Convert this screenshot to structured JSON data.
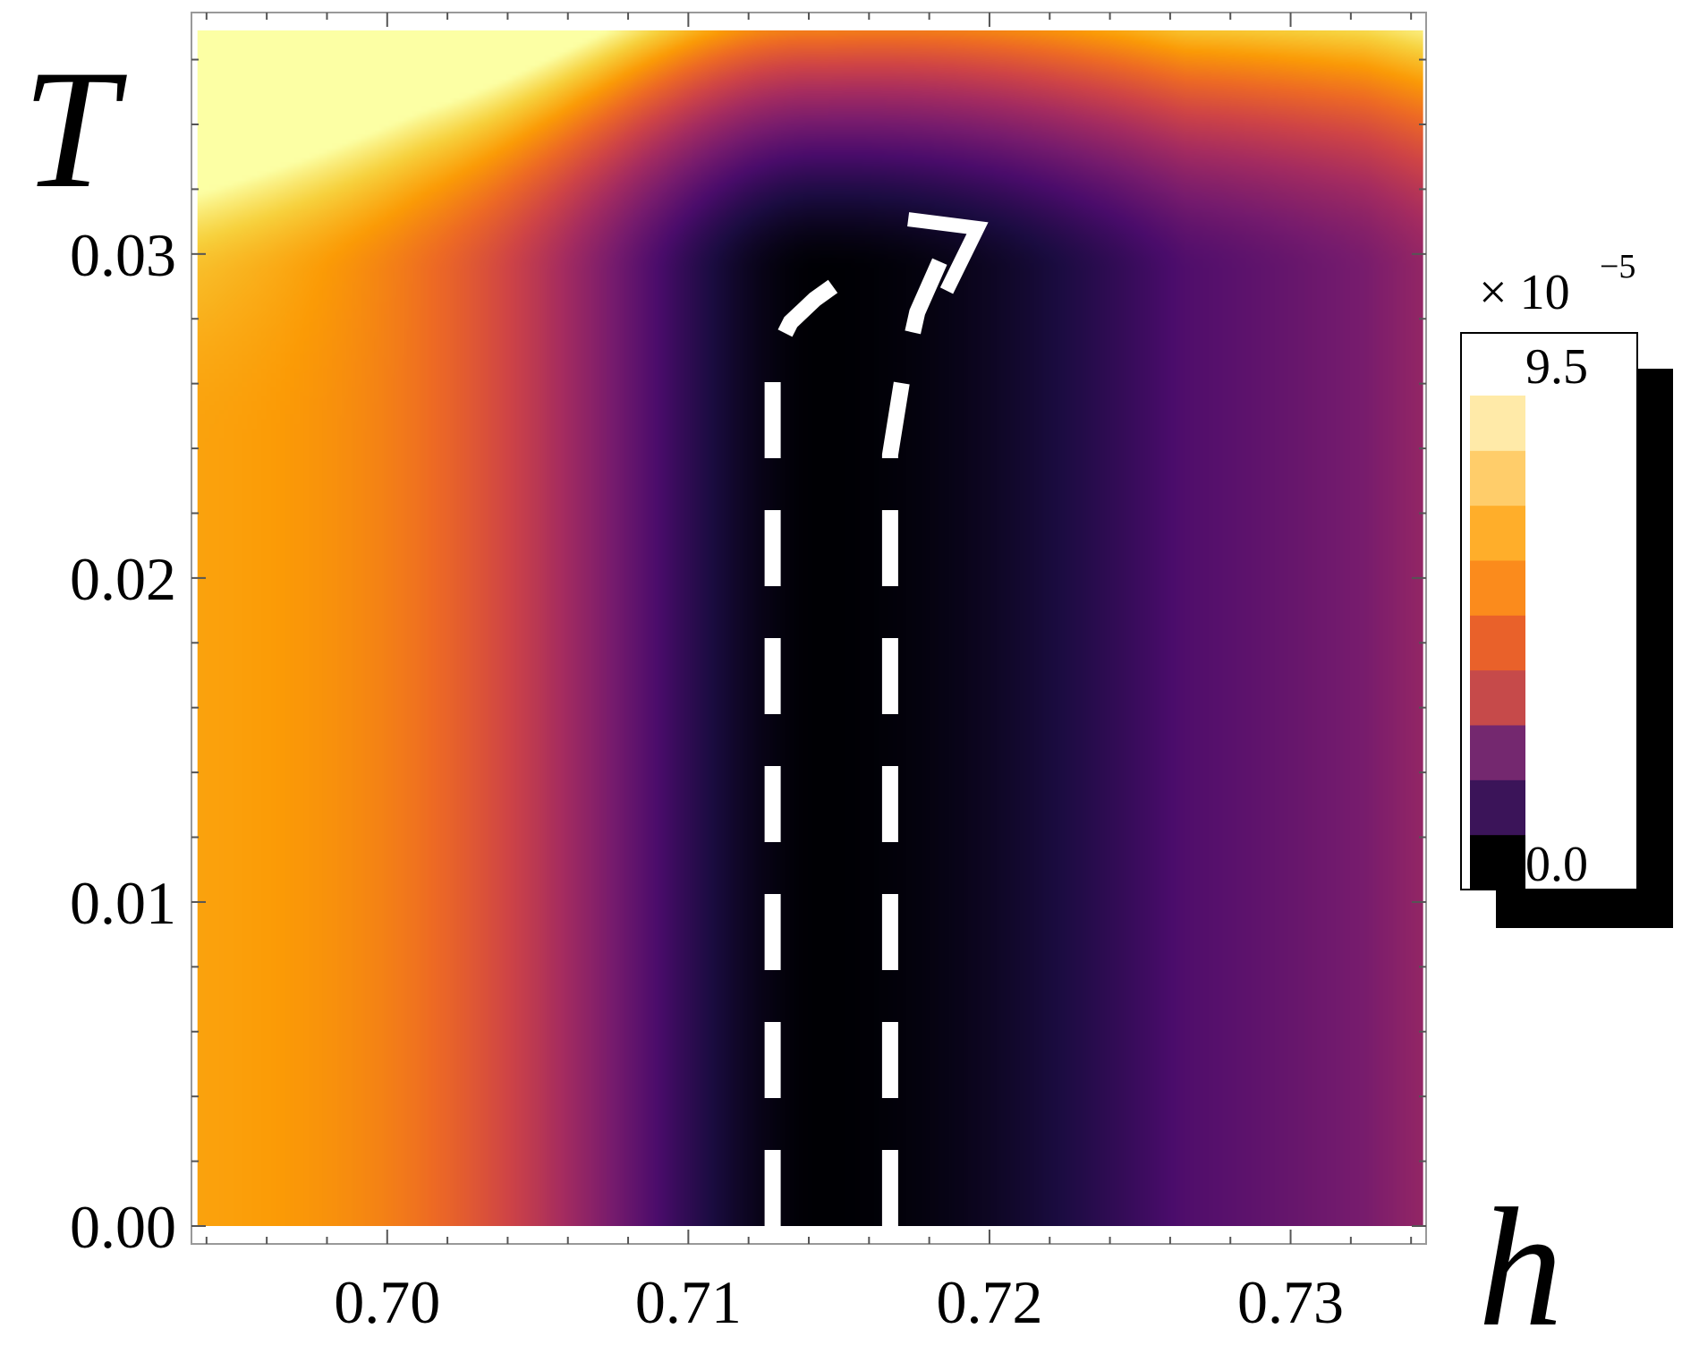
{
  "chart_data": {
    "type": "heatmap",
    "title": "",
    "xlabel": "h",
    "ylabel": "T",
    "xlim": [
      0.6935,
      0.7345
    ],
    "ylim": [
      0.0,
      0.0369
    ],
    "x_ticks": [
      "0.70",
      "0.71",
      "0.72",
      "0.73"
    ],
    "y_ticks": [
      "0.00",
      "0.01",
      "0.02",
      "0.03"
    ],
    "colorbar": {
      "multiplier": "× 10",
      "exponent": "−5",
      "min_label": "0.0",
      "max_label": "9.5",
      "min": 0.0,
      "max": 9.5,
      "colors": [
        "#000000",
        "#3b1459",
        "#74286f",
        "#c64a4a",
        "#e9612a",
        "#fb8b1c",
        "#ffae2a",
        "#ffcd6a",
        "#ffeaa8"
      ]
    },
    "colormap": [
      "#000004",
      "#1b0c41",
      "#4a0c6b",
      "#781c6d",
      "#a52c60",
      "#cf4446",
      "#ed6925",
      "#fb9b06",
      "#f7d13d",
      "#fcffa4"
    ],
    "value_range": [
      0.0,
      9.5
    ],
    "boundary_lines": {
      "color": "#ffffff",
      "style": "dashed",
      "left": [
        [
          0.7128,
          0.0
        ],
        [
          0.7128,
          0.0268
        ],
        [
          0.7134,
          0.0279
        ],
        [
          0.7142,
          0.0286
        ],
        [
          0.7148,
          0.029
        ]
      ],
      "right": [
        [
          0.7167,
          0.0
        ],
        [
          0.7167,
          0.0238
        ],
        [
          0.7171,
          0.0261
        ],
        [
          0.7176,
          0.0282
        ],
        [
          0.7186,
          0.0303
        ],
        [
          0.7196,
          0.0308
        ]
      ]
    }
  }
}
